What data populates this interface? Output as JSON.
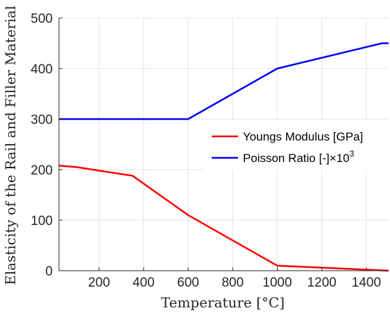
{
  "chart_data": {
    "type": "line",
    "xlabel": "Temperature [°C]",
    "ylabel": "Elasticity of the Rail and Filler Material",
    "xlim": [
      20,
      1500
    ],
    "ylim": [
      0,
      500
    ],
    "xticks": [
      200,
      400,
      600,
      800,
      1000,
      1200,
      1400
    ],
    "yticks": [
      0,
      100,
      200,
      300,
      400,
      500
    ],
    "xtick_labels": [
      "200",
      "400",
      "600",
      "800",
      "1000",
      "1200",
      "1400"
    ],
    "ytick_labels": [
      "0",
      "100",
      "200",
      "300",
      "400",
      "500"
    ],
    "grid": true,
    "legend_position": "right",
    "series": [
      {
        "name": "Youngs Modulus [GPa]",
        "color": "#ff0000",
        "x": [
          20,
          100,
          200,
          350,
          600,
          1000,
          1400,
          1500
        ],
        "y": [
          208,
          205,
          198,
          188,
          110,
          10,
          2,
          0
        ]
      },
      {
        "name": "Poisson Ratio [-]",
        "name_suffix": "×10",
        "name_superscript": "3",
        "color": "#0000ff",
        "x": [
          20,
          600,
          1000,
          1470,
          1500
        ],
        "y": [
          300,
          300,
          400,
          450,
          450
        ]
      }
    ]
  }
}
